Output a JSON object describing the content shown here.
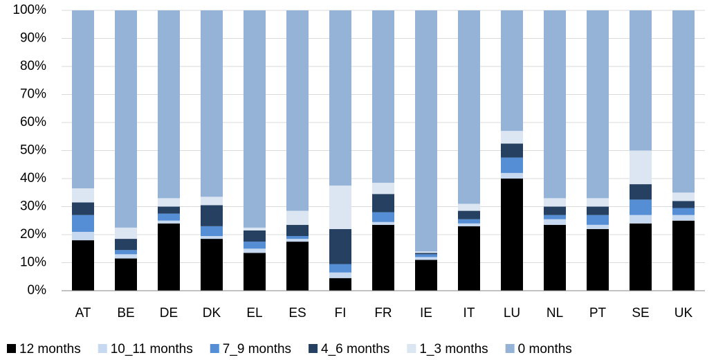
{
  "chart_data": {
    "type": "stacked_bar",
    "categories": [
      "AT",
      "BE",
      "DE",
      "DK",
      "EL",
      "ES",
      "FI",
      "FR",
      "IE",
      "IT",
      "LU",
      "NL",
      "PT",
      "SE",
      "UK"
    ],
    "series": [
      {
        "name": "12 months",
        "color": "#000000",
        "values": [
          18,
          11.5,
          24,
          18.5,
          13.5,
          17.5,
          4.5,
          23.5,
          11,
          23,
          40,
          23.5,
          22,
          24,
          25
        ]
      },
      {
        "name": "10_11 months",
        "color": "#c6d9f1",
        "values": [
          3,
          1.5,
          1,
          1,
          1.5,
          1,
          2,
          1,
          1,
          1,
          2,
          2,
          1.5,
          3,
          2
        ]
      },
      {
        "name": "7_9 months",
        "color": "#558ed5",
        "values": [
          6,
          1.5,
          2.5,
          3.5,
          2.5,
          1,
          3,
          3.5,
          1,
          1.5,
          5.5,
          1.5,
          3.5,
          5.5,
          2.5
        ]
      },
      {
        "name": "4_6 months",
        "color": "#254061",
        "values": [
          4.5,
          4,
          2.5,
          7.5,
          4,
          4,
          12.5,
          6.5,
          0.5,
          3,
          5,
          3,
          3,
          5.5,
          2.5
        ]
      },
      {
        "name": "1_3 months",
        "color": "#dce6f2",
        "values": [
          5,
          4,
          3,
          3,
          1,
          5,
          15.5,
          4,
          0.5,
          2.5,
          4.5,
          3,
          3,
          12,
          3
        ]
      },
      {
        "name": "0 months",
        "color": "#95b3d7",
        "values": [
          63.5,
          77.5,
          67,
          66.5,
          77.5,
          71.5,
          62.5,
          61.5,
          86,
          69,
          43,
          67,
          67,
          50,
          65
        ]
      }
    ],
    "ylim": [
      0,
      100
    ],
    "yticks": [
      {
        "value": 0,
        "label": "0%"
      },
      {
        "value": 10,
        "label": "10%"
      },
      {
        "value": 20,
        "label": "20%"
      },
      {
        "value": 30,
        "label": "30%"
      },
      {
        "value": 40,
        "label": "40%"
      },
      {
        "value": 50,
        "label": "50%"
      },
      {
        "value": 60,
        "label": "60%"
      },
      {
        "value": 70,
        "label": "70%"
      },
      {
        "value": 80,
        "label": "80%"
      },
      {
        "value": 90,
        "label": "90%"
      },
      {
        "value": 100,
        "label": "100%"
      }
    ],
    "grid": true,
    "legend": "bottom"
  }
}
